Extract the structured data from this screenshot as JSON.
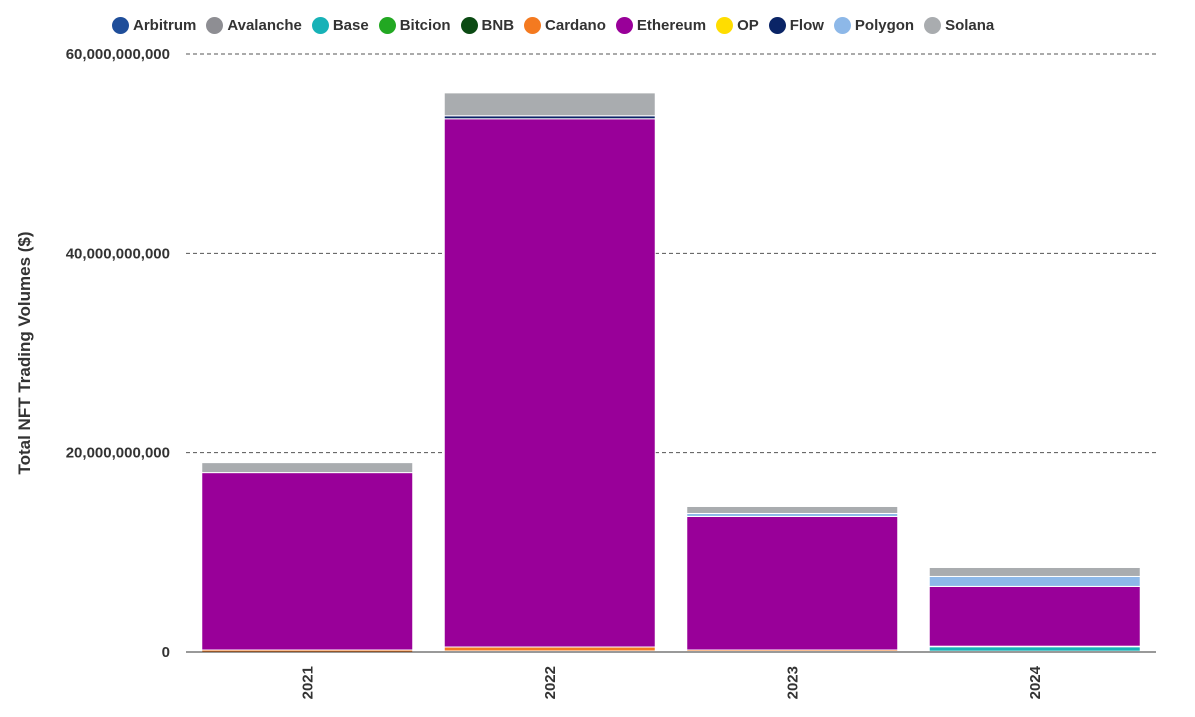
{
  "chart_data": {
    "type": "bar",
    "stacked": true,
    "categories": [
      "2021",
      "2022",
      "2023",
      "2024"
    ],
    "ylabel": "Total NFT Trading Volumes ($)",
    "xlabel": "",
    "ylim": [
      0,
      60000000000
    ],
    "y_ticks": [
      0,
      20000000000,
      40000000000,
      60000000000
    ],
    "y_tick_labels": [
      "0",
      "20,000,000,000",
      "40,000,000,000",
      "60,000,000,000"
    ],
    "grid": "horizontal-dashed",
    "legend_position": "top",
    "series": [
      {
        "name": "Arbitrum",
        "color": "#1f4e9a",
        "values": [
          0,
          0,
          0,
          50000000
        ]
      },
      {
        "name": "Avalanche",
        "color": "#8e8e93",
        "values": [
          0,
          50000000,
          50000000,
          30000000
        ]
      },
      {
        "name": "Base",
        "color": "#17b2b7",
        "values": [
          0,
          0,
          0,
          450000000
        ]
      },
      {
        "name": "Bitcion",
        "color": "#22a822",
        "values": [
          0,
          0,
          0,
          0
        ]
      },
      {
        "name": "BNB",
        "color": "#0b4a13",
        "values": [
          0,
          50000000,
          0,
          0
        ]
      },
      {
        "name": "Cardano",
        "color": "#f47a20",
        "values": [
          200000000,
          400000000,
          150000000,
          50000000
        ]
      },
      {
        "name": "Ethereum",
        "color": "#990099",
        "values": [
          17800000000,
          53000000000,
          13400000000,
          6000000000
        ]
      },
      {
        "name": "OP",
        "color": "#ffdd00",
        "values": [
          0,
          0,
          0,
          0
        ]
      },
      {
        "name": "Flow",
        "color": "#0a2466",
        "values": [
          0,
          300000000,
          0,
          0
        ]
      },
      {
        "name": "Polygon",
        "color": "#8db8e8",
        "values": [
          0,
          0,
          300000000,
          1000000000
        ]
      },
      {
        "name": "Solana",
        "color": "#a9acaf",
        "values": [
          1000000000,
          2300000000,
          700000000,
          900000000
        ]
      }
    ]
  }
}
